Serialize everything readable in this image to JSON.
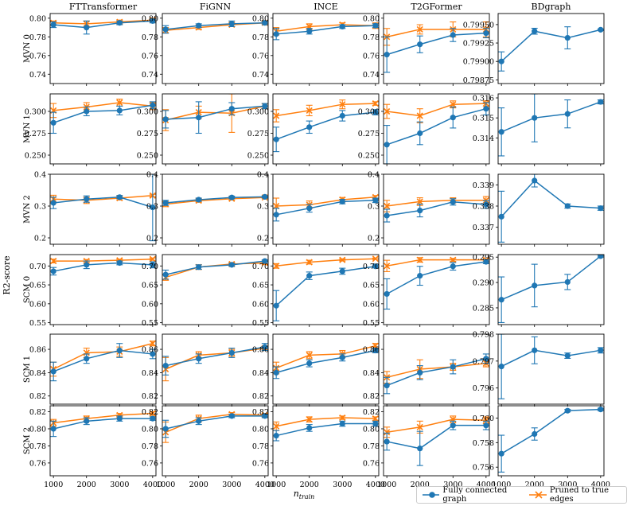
{
  "figure": {
    "ylabel": "R2-score",
    "xlabel_base": "n",
    "xlabel_sub": "train"
  },
  "legend": {
    "full_label": "Fully connected graph",
    "pruned_label": "Pruned to true edges"
  },
  "colors": {
    "full": "#1f77b4",
    "pruned": "#ff7f0e",
    "axis": "#000000"
  },
  "chart_data": {
    "type": "line",
    "x": [
      1000,
      2000,
      3000,
      4000
    ],
    "xticks": [
      "1000",
      "2000",
      "3000",
      "4000"
    ],
    "columns": [
      "FTTransformer",
      "FiGNN",
      "INCE",
      "T2GFormer",
      "BDgraph"
    ],
    "rows": [
      {
        "label": "MVN 0",
        "ylim": [
          0.73,
          0.805
        ],
        "yticks": [
          0.74,
          0.76,
          0.78,
          0.8
        ],
        "yticklabels": [
          "0.74",
          "0.76",
          "0.78",
          "0.80"
        ],
        "panels": [
          {
            "full": [
              0.793,
              0.79,
              0.795,
              0.797
            ],
            "full_err": [
              0.003,
              0.007,
              0.002,
              0.002
            ],
            "pruned": [
              0.795,
              0.794,
              0.796,
              0.798
            ],
            "pruned_err": [
              0.002,
              0.003,
              0.002,
              0.002
            ]
          },
          {
            "full": [
              0.788,
              0.792,
              0.794,
              0.795
            ],
            "full_err": [
              0.004,
              0.002,
              0.003,
              0.002
            ],
            "pruned": [
              0.787,
              0.79,
              0.793,
              0.795
            ],
            "pruned_err": [
              0.003,
              0.002,
              0.002,
              0.001
            ]
          },
          {
            "full": [
              0.783,
              0.786,
              0.791,
              0.792
            ],
            "full_err": [
              0.006,
              0.003,
              0.002,
              0.002
            ],
            "pruned": [
              0.786,
              0.791,
              0.793,
              0.792
            ],
            "pruned_err": [
              0.004,
              0.003,
              0.002,
              0.003
            ]
          },
          {
            "full": [
              0.761,
              0.772,
              0.782,
              0.784
            ],
            "full_err": [
              0.019,
              0.009,
              0.007,
              0.005
            ],
            "pruned": [
              0.78,
              0.788,
              0.788,
              0.788
            ],
            "pruned_err": [
              0.009,
              0.005,
              0.008,
              0.008
            ]
          },
          {
            "full": [
              0.799,
              0.79941,
              0.79932,
              0.79943
            ],
            "full_err": [
              0.00013,
              4e-05,
              0.00015,
              1e-05
            ],
            "ylim": [
              0.7987,
              0.79965
            ],
            "yticks": [
              0.79875,
              0.799,
              0.79925,
              0.7995
            ],
            "yticklabels": [
              "0.79875",
              "0.79900",
              "0.79925",
              "0.79950"
            ]
          }
        ]
      },
      {
        "label": "MVN 1",
        "ylim": [
          0.24,
          0.32
        ],
        "yticks": [
          0.25,
          0.275,
          0.3
        ],
        "yticklabels": [
          "0.250",
          "0.275",
          "0.300"
        ],
        "panels": [
          {
            "full": [
              0.287,
              0.3,
              0.301,
              0.307
            ],
            "full_err": [
              0.012,
              0.005,
              0.005,
              0.004
            ],
            "pruned": [
              0.301,
              0.305,
              0.31,
              0.306
            ],
            "pruned_err": [
              0.008,
              0.005,
              0.004,
              0.004
            ]
          },
          {
            "full": [
              0.291,
              0.293,
              0.303,
              0.306
            ],
            "full_err": [
              0.01,
              0.018,
              0.007,
              0.003
            ],
            "pruned": [
              0.29,
              0.299,
              0.298,
              0.306
            ],
            "pruned_err": [
              0.012,
              0.007,
              0.022,
              0.003
            ]
          },
          {
            "full": [
              0.268,
              0.282,
              0.295,
              0.299
            ],
            "full_err": [
              0.014,
              0.007,
              0.006,
              0.003
            ],
            "pruned": [
              0.295,
              0.301,
              0.308,
              0.309
            ],
            "pruned_err": [
              0.007,
              0.006,
              0.005,
              0.002
            ]
          },
          {
            "full": [
              0.262,
              0.275,
              0.293,
              0.303
            ],
            "full_err": [
              0.022,
              0.013,
              0.012,
              0.007
            ],
            "pruned": [
              0.3,
              0.295,
              0.308,
              0.309
            ],
            "pruned_err": [
              0.008,
              0.008,
              0.004,
              0.003
            ]
          },
          {
            "full": [
              0.3143,
              0.315,
              0.3152,
              0.3158
            ],
            "full_err": [
              0.0012,
              0.0012,
              0.0007,
              0.0001
            ],
            "ylim": [
              0.3127,
              0.3162
            ],
            "yticks": [
              0.314,
              0.315,
              0.316
            ],
            "yticklabels": [
              "0.314",
              "0.315",
              "0.316"
            ]
          }
        ]
      },
      {
        "label": "MVN 2",
        "ylim": [
          0.18,
          0.4
        ],
        "yticks": [
          0.2,
          0.3,
          0.4
        ],
        "yticklabels": [
          "0.2",
          "0.3",
          "0.4"
        ],
        "panels": [
          {
            "full": [
              0.31,
              0.322,
              0.328,
              0.296
            ],
            "full_err": [
              0.018,
              0.01,
              0.005,
              0.105
            ],
            "pruned": [
              0.322,
              0.318,
              0.325,
              0.333
            ],
            "pruned_err": [
              0.012,
              0.01,
              0.006,
              0.004
            ]
          },
          {
            "full": [
              0.31,
              0.32,
              0.327,
              0.329
            ],
            "full_err": [
              0.008,
              0.005,
              0.004,
              0.003
            ],
            "pruned": [
              0.306,
              0.317,
              0.323,
              0.327
            ],
            "pruned_err": [
              0.008,
              0.005,
              0.004,
              0.003
            ]
          },
          {
            "full": [
              0.273,
              0.293,
              0.314,
              0.318
            ],
            "full_err": [
              0.02,
              0.012,
              0.007,
              0.007
            ],
            "pruned": [
              0.3,
              0.304,
              0.32,
              0.328
            ],
            "pruned_err": [
              0.025,
              0.012,
              0.007,
              0.005
            ]
          },
          {
            "full": [
              0.27,
              0.286,
              0.313,
              0.305
            ],
            "full_err": [
              0.02,
              0.02,
              0.01,
              0.012
            ],
            "pruned": [
              0.3,
              0.314,
              0.318,
              0.318
            ],
            "pruned_err": [
              0.018,
              0.012,
              0.008,
              0.012
            ]
          },
          {
            "full": [
              0.3375,
              0.3392,
              0.338,
              0.3379
            ],
            "full_err": [
              0.0012,
              0.0003,
              0.0001,
              0.0001
            ],
            "ylim": [
              0.3362,
              0.3395
            ],
            "yticks": [
              0.337,
              0.338,
              0.339
            ],
            "yticklabels": [
              "0.337",
              "0.338",
              "0.339"
            ]
          }
        ]
      },
      {
        "label": "SCM 0",
        "ylim": [
          0.545,
          0.73
        ],
        "yticks": [
          0.55,
          0.6,
          0.65,
          0.7
        ],
        "yticklabels": [
          "0.55",
          "0.60",
          "0.65",
          "0.70"
        ],
        "panels": [
          {
            "full": [
              0.686,
              0.703,
              0.708,
              0.703
            ],
            "full_err": [
              0.01,
              0.01,
              0.005,
              0.008
            ],
            "pruned": [
              0.713,
              0.713,
              0.715,
              0.718
            ],
            "pruned_err": [
              0.005,
              0.004,
              0.003,
              0.003
            ]
          },
          {
            "full": [
              0.677,
              0.697,
              0.703,
              0.713
            ],
            "full_err": [
              0.012,
              0.006,
              0.004,
              0.003
            ],
            "pruned": [
              0.67,
              0.697,
              0.705,
              0.708
            ],
            "pruned_err": [
              0.008,
              0.006,
              0.004,
              0.004
            ]
          },
          {
            "full": [
              0.595,
              0.674,
              0.686,
              0.699
            ],
            "full_err": [
              0.04,
              0.01,
              0.008,
              0.004
            ],
            "pruned": [
              0.7,
              0.71,
              0.716,
              0.719
            ],
            "pruned_err": [
              0.006,
              0.005,
              0.003,
              0.002
            ]
          },
          {
            "full": [
              0.626,
              0.674,
              0.699,
              0.711
            ],
            "full_err": [
              0.04,
              0.025,
              0.01,
              0.005
            ],
            "pruned": [
              0.7,
              0.716,
              0.716,
              0.716
            ],
            "pruned_err": [
              0.015,
              0.006,
              0.004,
              0.003
            ]
          },
          {
            "full": [
              0.2866,
              0.2894,
              0.2901,
              0.2952
            ],
            "full_err": [
              0.0045,
              0.0042,
              0.0015,
              0.0002
            ],
            "ylim": [
              0.2817,
              0.2955
            ],
            "yticks": [
              0.285,
              0.29,
              0.295
            ],
            "yticklabels": [
              "0.285",
              "0.290",
              "0.295"
            ]
          }
        ]
      },
      {
        "label": "SCM 1",
        "ylim": [
          0.813,
          0.873
        ],
        "yticks": [
          0.82,
          0.84,
          0.86
        ],
        "yticklabels": [
          "0.82",
          "0.84",
          "0.86"
        ],
        "panels": [
          {
            "full": [
              0.841,
              0.852,
              0.859,
              0.856
            ],
            "full_err": [
              0.008,
              0.004,
              0.006,
              0.004
            ],
            "pruned": [
              0.843,
              0.857,
              0.858,
              0.865
            ],
            "pruned_err": [
              0.006,
              0.004,
              0.004,
              0.002
            ]
          },
          {
            "full": [
              0.846,
              0.852,
              0.857,
              0.862
            ],
            "full_err": [
              0.008,
              0.004,
              0.004,
              0.003
            ],
            "pruned": [
              0.843,
              0.855,
              0.857,
              0.861
            ],
            "pruned_err": [
              0.01,
              0.003,
              0.003,
              0.002
            ]
          },
          {
            "full": [
              0.84,
              0.848,
              0.853,
              0.859
            ],
            "full_err": [
              0.005,
              0.003,
              0.003,
              0.002
            ],
            "pruned": [
              0.844,
              0.855,
              0.856,
              0.863
            ],
            "pruned_err": [
              0.005,
              0.003,
              0.003,
              0.002
            ]
          },
          {
            "full": [
              0.829,
              0.84,
              0.845,
              0.852
            ],
            "full_err": [
              0.007,
              0.006,
              0.006,
              0.004
            ],
            "pruned": [
              0.836,
              0.843,
              0.845,
              0.848
            ],
            "pruned_err": [
              0.005,
              0.008,
              0.003,
              0.003
            ]
          },
          {
            "full": [
              0.7968,
              0.7974,
              0.7972,
              0.7974
            ],
            "full_err": [
              0.0012,
              0.0005,
              0.0001,
              0.0001
            ],
            "ylim": [
              0.7954,
              0.798
            ],
            "yticks": [
              0.796,
              0.797,
              0.798
            ],
            "yticklabels": [
              "0.796",
              "0.797",
              "0.798"
            ]
          }
        ]
      },
      {
        "label": "SCM 2",
        "ylim": [
          0.745,
          0.827
        ],
        "yticks": [
          0.76,
          0.78,
          0.8,
          0.82
        ],
        "yticklabels": [
          "0.76",
          "0.78",
          "0.80",
          "0.82"
        ],
        "panels": [
          {
            "full": [
              0.8,
              0.809,
              0.812,
              0.812
            ],
            "full_err": [
              0.009,
              0.004,
              0.003,
              0.002
            ],
            "pruned": [
              0.807,
              0.812,
              0.816,
              0.818
            ],
            "pruned_err": [
              0.004,
              0.003,
              0.002,
              0.002
            ]
          },
          {
            "full": [
              0.8,
              0.809,
              0.815,
              0.815
            ],
            "full_err": [
              0.01,
              0.004,
              0.002,
              0.002
            ],
            "pruned": [
              0.796,
              0.812,
              0.817,
              0.816
            ],
            "pruned_err": [
              0.012,
              0.004,
              0.002,
              0.002
            ]
          },
          {
            "full": [
              0.792,
              0.801,
              0.806,
              0.806
            ],
            "full_err": [
              0.006,
              0.004,
              0.003,
              0.003
            ],
            "pruned": [
              0.803,
              0.811,
              0.813,
              0.812
            ],
            "pruned_err": [
              0.005,
              0.003,
              0.002,
              0.002
            ]
          },
          {
            "full": [
              0.785,
              0.777,
              0.804,
              0.804
            ],
            "full_err": [
              0.01,
              0.02,
              0.005,
              0.005
            ],
            "pruned": [
              0.796,
              0.802,
              0.811,
              0.81
            ],
            "pruned_err": [
              0.006,
              0.007,
              0.004,
              0.004
            ]
          },
          {
            "full": [
              0.7571,
              0.7587,
              0.7606,
              0.7607
            ],
            "full_err": [
              0.0015,
              0.0005,
              0.0001,
              0.0001
            ],
            "ylim": [
              0.7553,
              0.761
            ],
            "yticks": [
              0.756,
              0.758,
              0.76
            ],
            "yticklabels": [
              "0.756",
              "0.758",
              "0.760"
            ]
          }
        ]
      }
    ]
  }
}
